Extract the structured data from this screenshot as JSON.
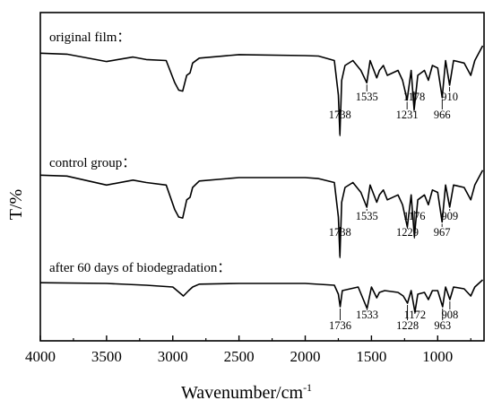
{
  "chart_data": {
    "type": "line",
    "xlabel": "Wavenumber/cm",
    "xlabel_superscript": "-1",
    "ylabel": "T/%",
    "xlim": [
      4000,
      650
    ],
    "x_ticks": [
      4000,
      3500,
      3000,
      2500,
      2000,
      1500,
      1000
    ],
    "x_tick_labels": [
      "4000",
      "3500",
      "3000",
      "2500",
      "2000",
      "1500",
      "1000"
    ],
    "y_tick_labels": false,
    "grid": false,
    "series": [
      {
        "name": "original film：",
        "offset": 2,
        "points": [
          [
            4000,
            0.05
          ],
          [
            3800,
            0.03
          ],
          [
            3500,
            -0.12
          ],
          [
            3300,
            -0.03
          ],
          [
            3200,
            -0.08
          ],
          [
            3050,
            -0.1
          ],
          [
            2985,
            -0.55
          ],
          [
            2955,
            -0.7
          ],
          [
            2925,
            -0.72
          ],
          [
            2895,
            -0.4
          ],
          [
            2870,
            -0.35
          ],
          [
            2850,
            -0.15
          ],
          [
            2800,
            -0.05
          ],
          [
            2500,
            0.02
          ],
          [
            2000,
            0.0
          ],
          [
            1900,
            -0.01
          ],
          [
            1780,
            -0.1
          ],
          [
            1750,
            -0.8
          ],
          [
            1738,
            -1.6
          ],
          [
            1725,
            -0.5
          ],
          [
            1700,
            -0.2
          ],
          [
            1640,
            -0.1
          ],
          [
            1580,
            -0.3
          ],
          [
            1535,
            -0.55
          ],
          [
            1510,
            -0.1
          ],
          [
            1460,
            -0.45
          ],
          [
            1440,
            -0.3
          ],
          [
            1410,
            -0.2
          ],
          [
            1380,
            -0.4
          ],
          [
            1300,
            -0.3
          ],
          [
            1265,
            -0.5
          ],
          [
            1231,
            -0.9
          ],
          [
            1200,
            -0.3
          ],
          [
            1178,
            -1.1
          ],
          [
            1150,
            -0.4
          ],
          [
            1100,
            -0.3
          ],
          [
            1070,
            -0.5
          ],
          [
            1040,
            -0.2
          ],
          [
            1000,
            -0.25
          ],
          [
            966,
            -0.85
          ],
          [
            940,
            -0.1
          ],
          [
            910,
            -0.6
          ],
          [
            880,
            -0.1
          ],
          [
            800,
            -0.15
          ],
          [
            750,
            -0.4
          ],
          [
            720,
            -0.1
          ],
          [
            660,
            0.2
          ]
        ],
        "peaks": [
          1738,
          1535,
          1231,
          1178,
          966,
          910
        ]
      },
      {
        "name": "control group：",
        "offset": 1,
        "points": [
          [
            4000,
            0.05
          ],
          [
            3800,
            0.03
          ],
          [
            3500,
            -0.15
          ],
          [
            3300,
            -0.05
          ],
          [
            3200,
            -0.1
          ],
          [
            3050,
            -0.15
          ],
          [
            2985,
            -0.65
          ],
          [
            2955,
            -0.8
          ],
          [
            2925,
            -0.82
          ],
          [
            2895,
            -0.45
          ],
          [
            2870,
            -0.4
          ],
          [
            2850,
            -0.2
          ],
          [
            2800,
            -0.07
          ],
          [
            2500,
            0.0
          ],
          [
            2000,
            0.0
          ],
          [
            1900,
            -0.02
          ],
          [
            1780,
            -0.1
          ],
          [
            1750,
            -0.8
          ],
          [
            1738,
            -1.6
          ],
          [
            1725,
            -0.5
          ],
          [
            1700,
            -0.2
          ],
          [
            1640,
            -0.1
          ],
          [
            1580,
            -0.3
          ],
          [
            1535,
            -0.6
          ],
          [
            1510,
            -0.15
          ],
          [
            1460,
            -0.5
          ],
          [
            1440,
            -0.35
          ],
          [
            1410,
            -0.25
          ],
          [
            1380,
            -0.45
          ],
          [
            1300,
            -0.35
          ],
          [
            1265,
            -0.55
          ],
          [
            1229,
            -1.0
          ],
          [
            1200,
            -0.35
          ],
          [
            1176,
            -1.2
          ],
          [
            1150,
            -0.45
          ],
          [
            1100,
            -0.35
          ],
          [
            1070,
            -0.55
          ],
          [
            1040,
            -0.25
          ],
          [
            1000,
            -0.3
          ],
          [
            967,
            -0.9
          ],
          [
            940,
            -0.15
          ],
          [
            909,
            -0.6
          ],
          [
            880,
            -0.15
          ],
          [
            800,
            -0.2
          ],
          [
            750,
            -0.45
          ],
          [
            720,
            -0.15
          ],
          [
            660,
            0.15
          ]
        ],
        "peaks": [
          1738,
          1535,
          1229,
          1176,
          967,
          909
        ]
      },
      {
        "name": "after  60 days of biodegradation：",
        "offset": 0,
        "points": [
          [
            4000,
            0.02
          ],
          [
            3500,
            0.0
          ],
          [
            3200,
            -0.05
          ],
          [
            3000,
            -0.1
          ],
          [
            2920,
            -0.35
          ],
          [
            2880,
            -0.2
          ],
          [
            2850,
            -0.1
          ],
          [
            2800,
            -0.02
          ],
          [
            2500,
            0.0
          ],
          [
            2000,
            0.0
          ],
          [
            1780,
            -0.05
          ],
          [
            1750,
            -0.3
          ],
          [
            1736,
            -0.65
          ],
          [
            1720,
            -0.2
          ],
          [
            1600,
            -0.1
          ],
          [
            1533,
            -0.7
          ],
          [
            1500,
            -0.1
          ],
          [
            1460,
            -0.4
          ],
          [
            1440,
            -0.25
          ],
          [
            1400,
            -0.2
          ],
          [
            1300,
            -0.25
          ],
          [
            1260,
            -0.35
          ],
          [
            1228,
            -0.55
          ],
          [
            1200,
            -0.2
          ],
          [
            1172,
            -0.8
          ],
          [
            1150,
            -0.3
          ],
          [
            1100,
            -0.25
          ],
          [
            1070,
            -0.45
          ],
          [
            1040,
            -0.2
          ],
          [
            1000,
            -0.2
          ],
          [
            963,
            -0.65
          ],
          [
            940,
            -0.1
          ],
          [
            908,
            -0.45
          ],
          [
            880,
            -0.1
          ],
          [
            800,
            -0.15
          ],
          [
            750,
            -0.35
          ],
          [
            720,
            -0.1
          ],
          [
            660,
            0.1
          ]
        ],
        "peaks": [
          1736,
          1533,
          1228,
          1172,
          963,
          908
        ]
      }
    ]
  }
}
